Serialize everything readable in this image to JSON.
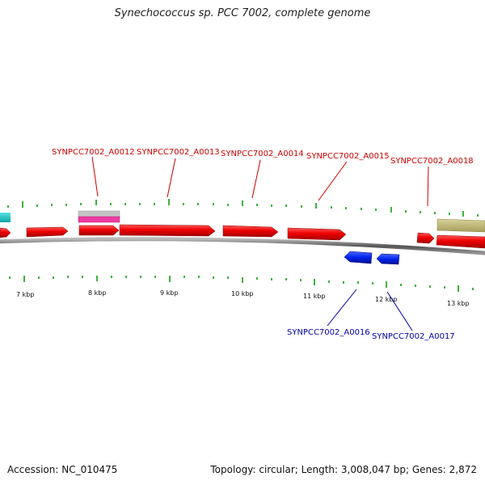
{
  "title": "Synechococcus sp. PCC 7002, complete genome",
  "footer": {
    "accession": "Accession: NC_010475",
    "summary": "Topology: circular; Length: 3,008,047 bp; Genes: 2,872"
  },
  "map": {
    "kbp_labels": [
      "7 kbp",
      "8 kbp",
      "9 kbp",
      "10 kbp",
      "11 kbp",
      "12 kbp",
      "13 kbp"
    ],
    "forward_gene_labels": [
      "SYNPCC7002_A0012",
      "SYNPCC7002_A0013",
      "SYNPCC7002_A0014",
      "SYNPCC7002_A0015",
      "SYNPCC7002_A0018"
    ],
    "reverse_gene_labels": [
      "SYNPCC7002_A0016",
      "SYNPCC7002_A0017"
    ]
  }
}
